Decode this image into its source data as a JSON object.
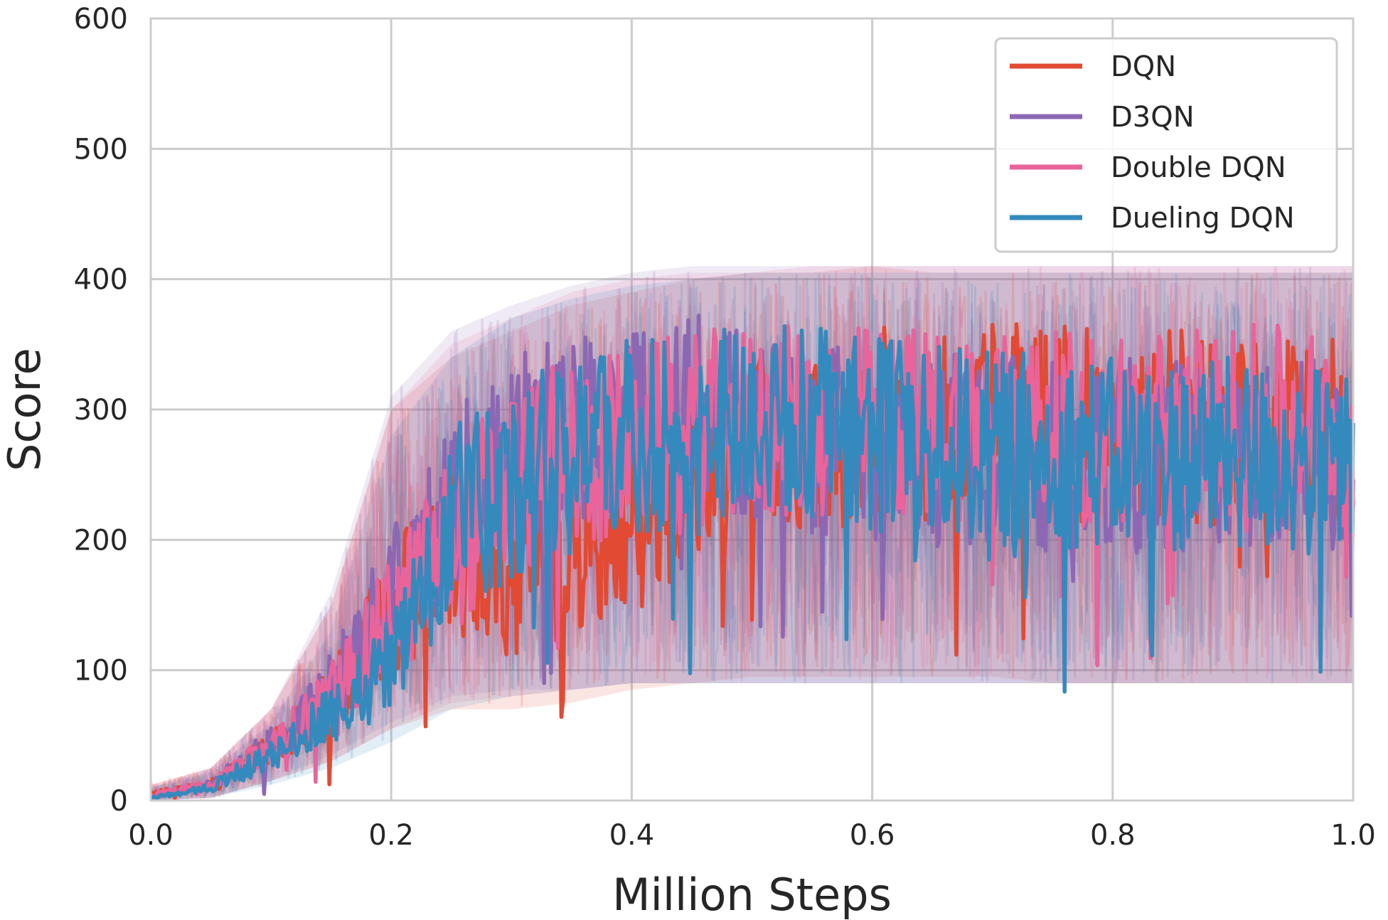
{
  "chart_data": {
    "type": "line",
    "xlabel": "Million Steps",
    "ylabel": "Score",
    "xlim": [
      0.0,
      1.0
    ],
    "ylim": [
      0,
      600
    ],
    "x_ticks": [
      0.0,
      0.2,
      0.4,
      0.6,
      0.8,
      1.0
    ],
    "x_tick_labels": [
      "0.0",
      "0.2",
      "0.4",
      "0.6",
      "0.8",
      "1.0"
    ],
    "y_ticks": [
      0,
      100,
      200,
      300,
      400,
      500,
      600
    ],
    "y_tick_labels": [
      "0",
      "100",
      "200",
      "300",
      "400",
      "500",
      "600"
    ],
    "grid": true,
    "legend_position": "top-right",
    "x": [
      0.0,
      0.05,
      0.1,
      0.15,
      0.2,
      0.25,
      0.3,
      0.35,
      0.4,
      0.45,
      0.5,
      0.55,
      0.6,
      0.65,
      0.7,
      0.75,
      0.8,
      0.85,
      0.9,
      0.95,
      1.0
    ],
    "series": [
      {
        "name": "DQN",
        "color": "#e24a33",
        "values": [
          5,
          12,
          40,
          75,
          150,
          190,
          170,
          195,
          230,
          250,
          270,
          280,
          290,
          285,
          295,
          290,
          285,
          290,
          285,
          280,
          280
        ],
        "band_lower": [
          0,
          2,
          15,
          30,
          55,
          70,
          70,
          75,
          85,
          90,
          95,
          95,
          95,
          95,
          95,
          90,
          90,
          90,
          90,
          90,
          90
        ],
        "band_upper": [
          12,
          25,
          70,
          150,
          300,
          340,
          360,
          380,
          390,
          400,
          405,
          405,
          410,
          405,
          405,
          405,
          405,
          405,
          405,
          405,
          405
        ]
      },
      {
        "name": "D3QN",
        "color": "#8c68b4",
        "values": [
          3,
          12,
          42,
          85,
          155,
          230,
          265,
          285,
          295,
          300,
          285,
          275,
          275,
          270,
          270,
          265,
          265,
          265,
          265,
          265,
          260
        ],
        "band_lower": [
          0,
          2,
          15,
          35,
          60,
          80,
          85,
          85,
          90,
          90,
          90,
          90,
          90,
          90,
          90,
          90,
          90,
          90,
          90,
          90,
          90
        ],
        "band_upper": [
          10,
          25,
          70,
          160,
          310,
          360,
          380,
          395,
          405,
          410,
          410,
          410,
          410,
          410,
          410,
          410,
          410,
          410,
          410,
          410,
          410
        ]
      },
      {
        "name": "Double DQN",
        "color": "#e8649a",
        "values": [
          4,
          12,
          40,
          80,
          140,
          200,
          245,
          265,
          275,
          285,
          290,
          290,
          290,
          290,
          290,
          285,
          285,
          290,
          290,
          290,
          290
        ],
        "band_lower": [
          0,
          2,
          15,
          30,
          55,
          75,
          80,
          85,
          90,
          90,
          90,
          90,
          90,
          90,
          90,
          90,
          90,
          90,
          90,
          90,
          90
        ],
        "band_upper": [
          12,
          25,
          70,
          150,
          300,
          350,
          370,
          390,
          400,
          405,
          405,
          410,
          410,
          410,
          410,
          410,
          410,
          410,
          410,
          410,
          410
        ]
      },
      {
        "name": "Dueling DQN",
        "color": "#348abd",
        "values": [
          2,
          10,
          35,
          65,
          105,
          215,
          245,
          265,
          280,
          285,
          290,
          290,
          280,
          275,
          270,
          270,
          265,
          265,
          265,
          260,
          255
        ],
        "band_lower": [
          0,
          2,
          12,
          25,
          45,
          70,
          80,
          85,
          90,
          90,
          90,
          90,
          90,
          90,
          90,
          90,
          90,
          90,
          90,
          90,
          90
        ],
        "band_upper": [
          10,
          22,
          60,
          130,
          280,
          340,
          370,
          385,
          395,
          400,
          405,
          405,
          405,
          405,
          405,
          405,
          405,
          405,
          405,
          405,
          405
        ]
      }
    ]
  }
}
